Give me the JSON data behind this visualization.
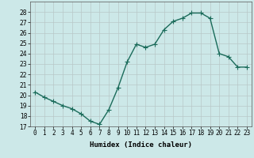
{
  "xlabel": "Humidex (Indice chaleur)",
  "x": [
    0,
    1,
    2,
    3,
    4,
    5,
    6,
    7,
    8,
    9,
    10,
    11,
    12,
    13,
    14,
    15,
    16,
    17,
    18,
    19,
    20,
    21,
    22,
    23
  ],
  "y": [
    20.3,
    19.8,
    19.4,
    19.0,
    18.7,
    18.2,
    17.5,
    17.2,
    18.6,
    20.7,
    23.2,
    24.9,
    24.6,
    24.9,
    26.3,
    27.1,
    27.4,
    27.9,
    27.9,
    27.4,
    24.0,
    23.7,
    22.7,
    22.7
  ],
  "line_color": "#1a6b5a",
  "marker": "+",
  "markersize": 4,
  "linewidth": 1.0,
  "ylim": [
    17,
    29
  ],
  "yticks": [
    17,
    18,
    19,
    20,
    21,
    22,
    23,
    24,
    25,
    26,
    27,
    28
  ],
  "xlim": [
    -0.5,
    23.5
  ],
  "bg_color": "#cce8e8",
  "grid_color": "#b8c8c8",
  "axis_fontsize": 6.5,
  "tick_fontsize": 5.5,
  "xlabel_fontsize": 6.5
}
